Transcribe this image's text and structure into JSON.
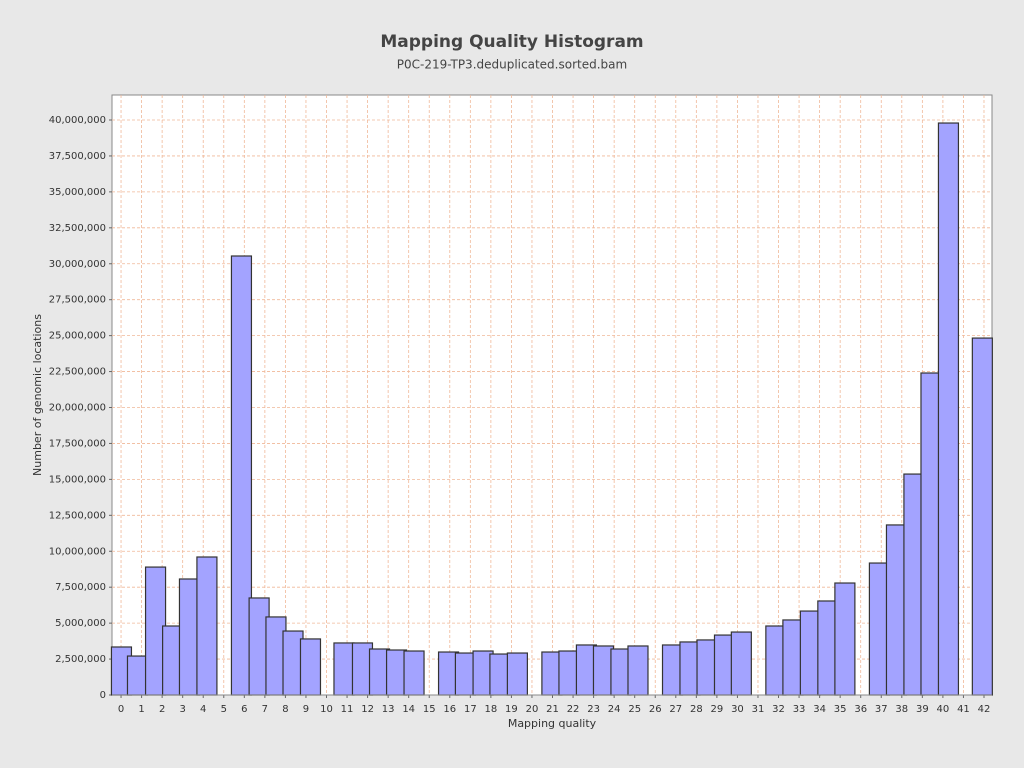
{
  "chart_data": {
    "type": "bar",
    "title": "Mapping Quality Histogram",
    "subtitle": "P0C-219-TP3.deduplicated.sorted.bam",
    "x_label": "Mapping quality",
    "y_label": "Number of genomic locations",
    "color": "#a3a3ff",
    "grid": true,
    "x": [
      0.02,
      0.8,
      1.68,
      2.51,
      3.33,
      4.18,
      5.86,
      6.72,
      7.54,
      8.37,
      9.22,
      10.85,
      11.75,
      12.58,
      13.41,
      14.26,
      15.94,
      16.76,
      17.62,
      18.44,
      19.29,
      20.97,
      21.8,
      22.65,
      23.48,
      24.33,
      25.16,
      26.84,
      27.69,
      28.52,
      29.37,
      30.19,
      31.87,
      32.7,
      33.55,
      34.4,
      35.23,
      36.91,
      37.74,
      38.59,
      39.42,
      40.27,
      41.92
    ],
    "values": [
      3340000,
      2710000,
      8900000,
      4800000,
      8070000,
      9600000,
      30540000,
      6750000,
      5430000,
      4450000,
      3900000,
      3620000,
      3620000,
      3200000,
      3130000,
      3060000,
      2990000,
      2920000,
      3060000,
      2850000,
      2920000,
      2990000,
      3060000,
      3480000,
      3410000,
      3200000,
      3410000,
      3480000,
      3690000,
      3830000,
      4170000,
      4380000,
      4800000,
      5220000,
      5840000,
      6540000,
      7790000,
      9180000,
      11830000,
      15370000,
      22400000,
      39790000,
      24830000
    ],
    "xlim": [
      -0.44,
      42.39
    ],
    "xticks": [
      0,
      1,
      2,
      3,
      4,
      5,
      6,
      7,
      8,
      9,
      10,
      11,
      12,
      13,
      14,
      15,
      16,
      17,
      18,
      19,
      20,
      21,
      22,
      23,
      24,
      25,
      26,
      27,
      28,
      29,
      30,
      31,
      32,
      33,
      34,
      35,
      36,
      37,
      38,
      39,
      40,
      41,
      42
    ],
    "ylim": [
      0,
      41740000
    ],
    "yticks": [
      0,
      {
        "value": 2500000,
        "label": "2,500,000"
      },
      {
        "value": 5000000,
        "label": "5,000,000"
      },
      {
        "value": 7500000,
        "label": "7,500,000"
      },
      {
        "value": 10000000,
        "label": "10,000,000"
      },
      {
        "value": 12500000,
        "label": "12,500,000"
      },
      {
        "value": 15000000,
        "label": "15,000,000"
      },
      {
        "value": 17500000,
        "label": "17,500,000"
      },
      {
        "value": 20000000,
        "label": "20,000,000"
      },
      {
        "value": 22500000,
        "label": "22,500,000"
      },
      {
        "value": 25000000,
        "label": "25,000,000"
      },
      {
        "value": 27500000,
        "label": "27,500,000"
      },
      {
        "value": 30000000,
        "label": "30,000,000"
      },
      {
        "value": 32500000,
        "label": "32,500,000"
      },
      {
        "value": 35000000,
        "label": "35,000,000"
      },
      {
        "value": 37500000,
        "label": "37,500,000"
      },
      {
        "value": 40000000,
        "label": "40,000,000"
      }
    ]
  }
}
